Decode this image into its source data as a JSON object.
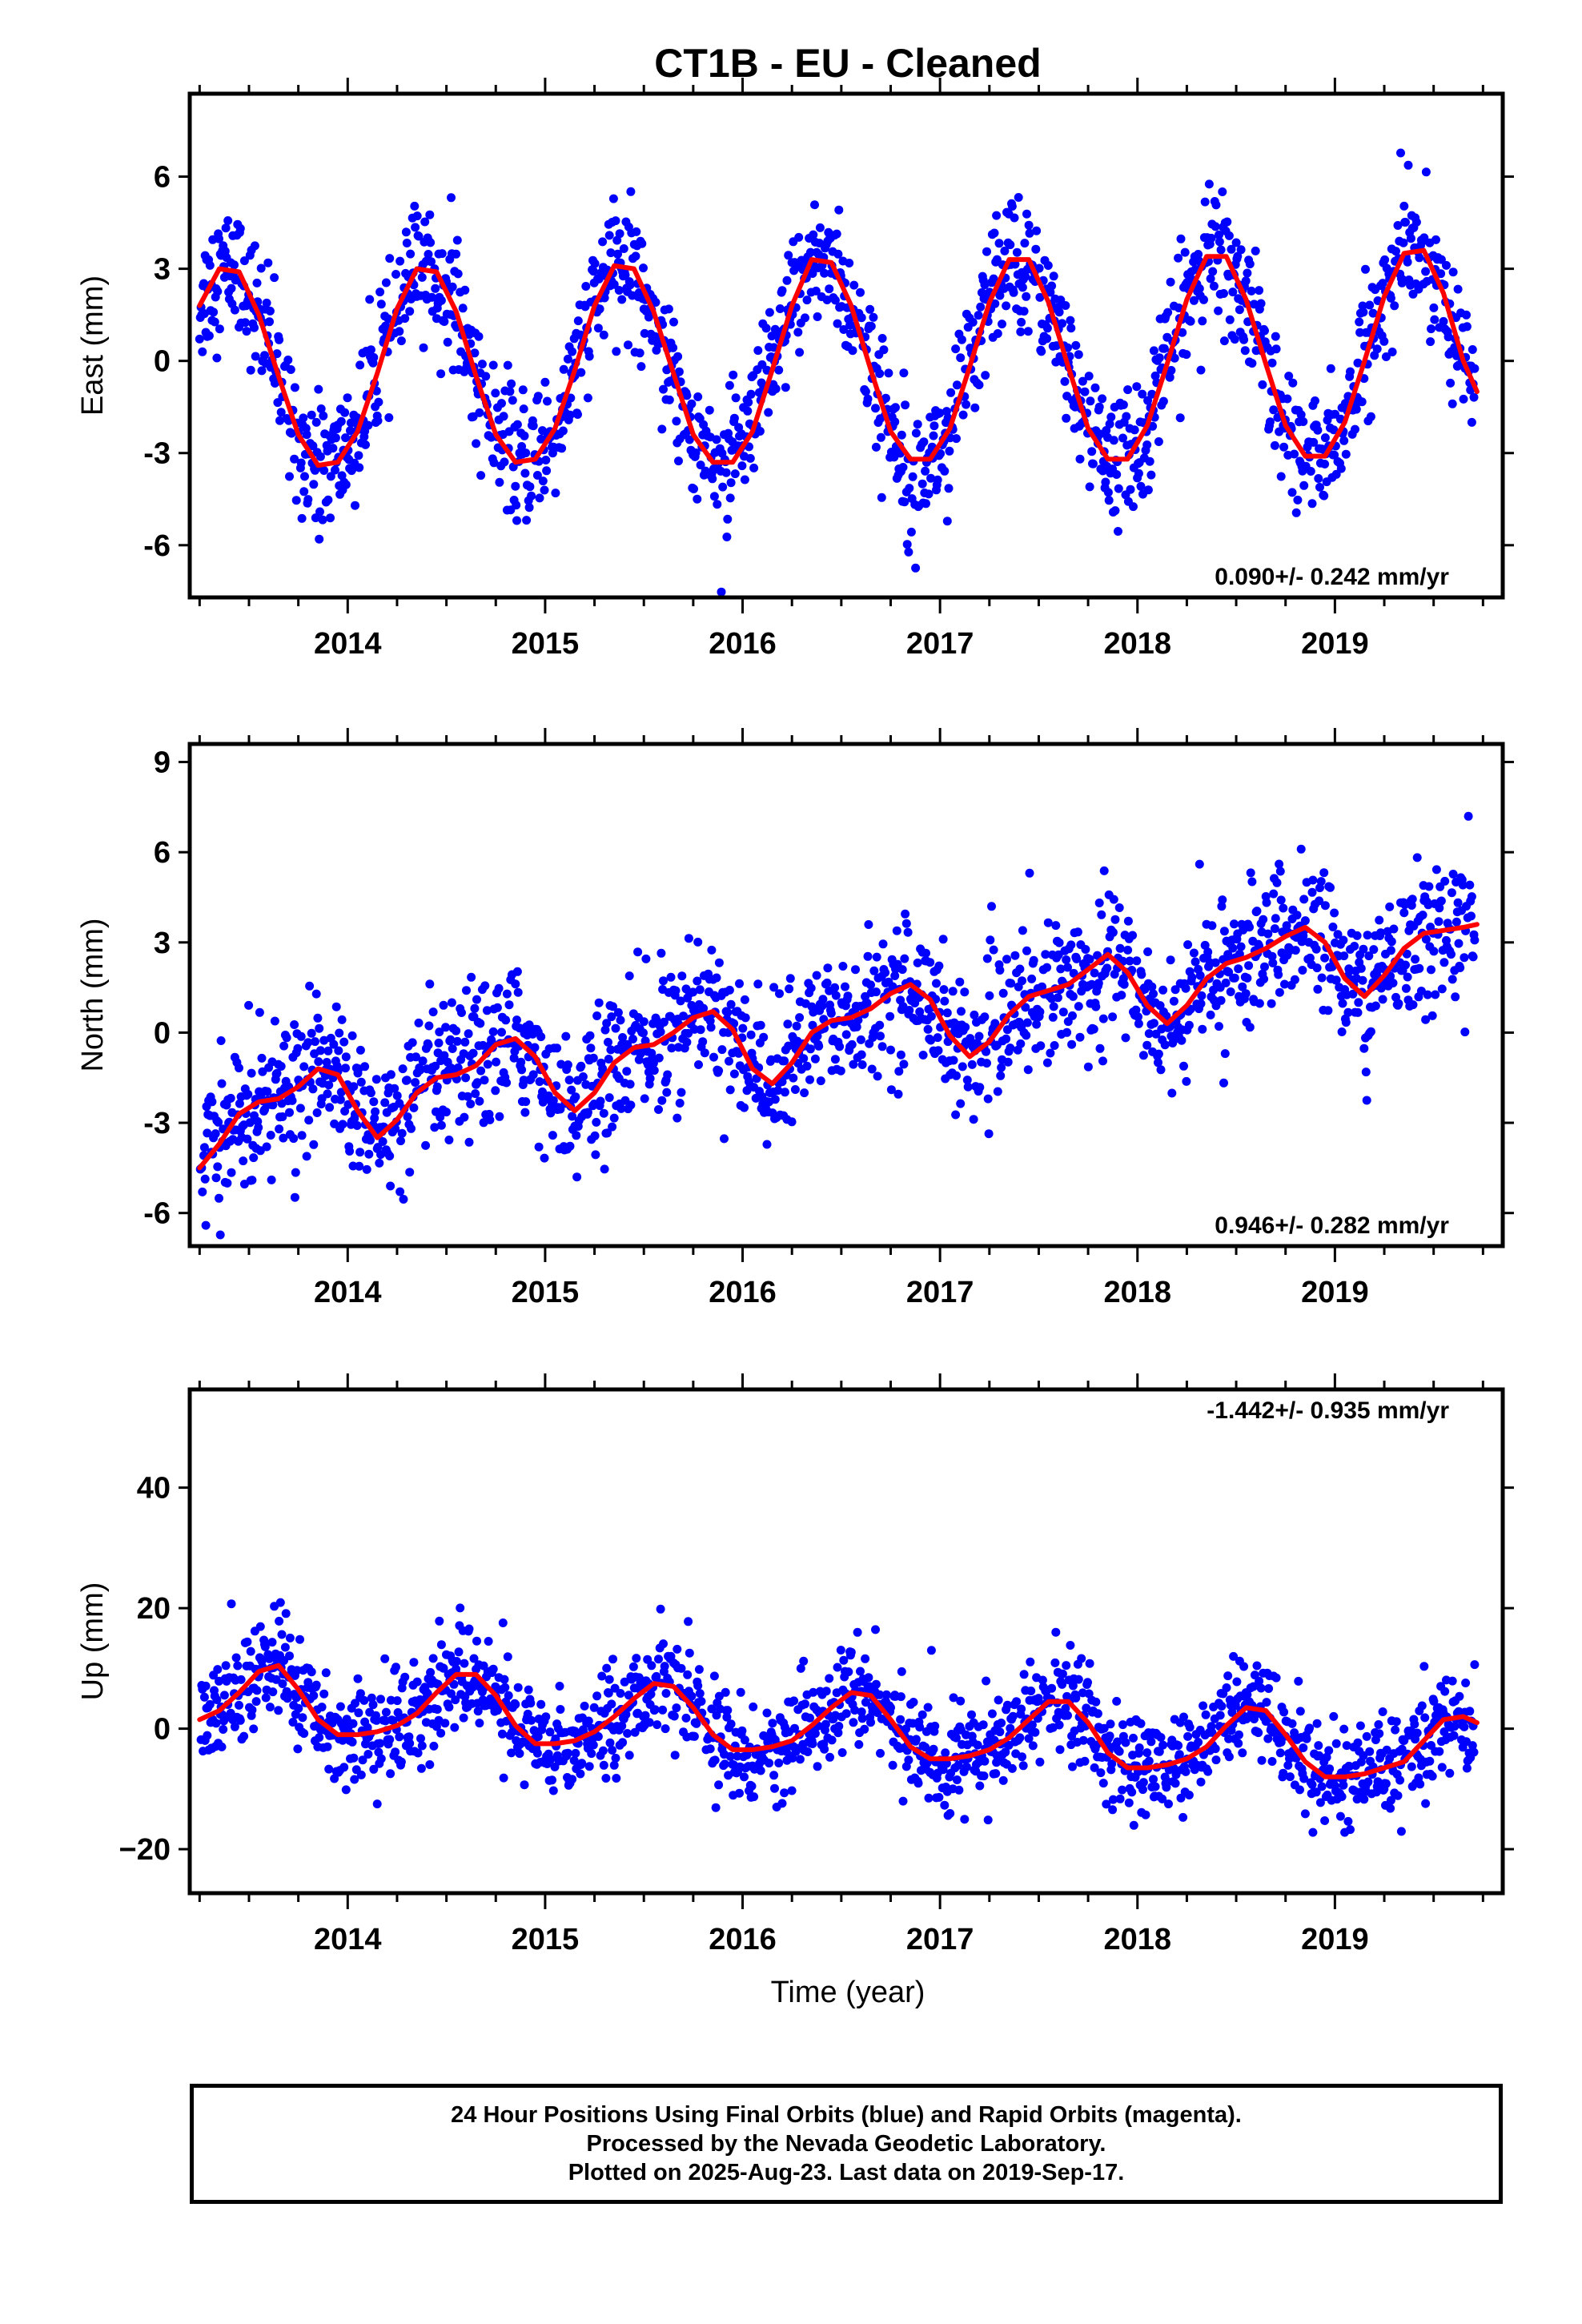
{
  "title": "CT1B  - EU - Cleaned",
  "colors": {
    "final": "#0000ff",
    "model": "#ff0000",
    "frame": "#000000"
  },
  "xlabel": "Time (year)",
  "footer": {
    "lines": [
      "24 Hour Positions Using Final Orbits (blue) and Rapid Orbits (magenta).",
      "Processed by the Nevada Geodetic Laboratory.",
      "Plotted on 2025-Aug-23. Last data on 2019-Sep-17."
    ]
  },
  "chart_data": [
    {
      "type": "scatter",
      "component": "east",
      "ylabel": "East (mm)",
      "xlim": [
        2013.2,
        2019.85
      ],
      "ylim": [
        -7.7,
        8.7
      ],
      "yticks": [
        "6",
        "3",
        "0",
        "-3",
        "-6"
      ],
      "xticks": [
        "2014",
        "2015",
        "2016",
        "2017",
        "2018",
        "2019"
      ],
      "rate_label": "0.090+/- 0.242 mm/yr",
      "rate_mm_per_yr": 0.09,
      "rate_sigma_mm_per_yr": 0.242,
      "series": [
        {
          "kind": "model",
          "x": [
            2013.25,
            2013.35,
            2013.45,
            2013.55,
            2013.65,
            2013.75,
            2013.85,
            2013.95,
            2014.05,
            2014.15,
            2014.25,
            2014.35,
            2014.45,
            2014.55,
            2014.65,
            2014.75,
            2014.85,
            2014.95,
            2015.05,
            2015.15,
            2015.25,
            2015.35,
            2015.45,
            2015.55,
            2015.65,
            2015.75,
            2015.85,
            2015.95,
            2016.05,
            2016.15,
            2016.25,
            2016.35,
            2016.45,
            2016.55,
            2016.65,
            2016.75,
            2016.85,
            2016.95,
            2017.05,
            2017.15,
            2017.25,
            2017.35,
            2017.45,
            2017.55,
            2017.65,
            2017.75,
            2017.85,
            2017.95,
            2018.05,
            2018.15,
            2018.25,
            2018.35,
            2018.45,
            2018.55,
            2018.65,
            2018.75,
            2018.85,
            2018.95,
            2019.05,
            2019.15,
            2019.25,
            2019.35,
            2019.45,
            2019.55,
            2019.65,
            2019.72
          ],
          "y": [
            1.8,
            3.0,
            2.9,
            1.5,
            -0.5,
            -2.4,
            -3.4,
            -3.3,
            -2.3,
            -0.4,
            1.7,
            3.0,
            2.9,
            1.6,
            -0.5,
            -2.4,
            -3.3,
            -3.2,
            -2.2,
            -0.3,
            1.8,
            3.1,
            3.0,
            1.6,
            -0.4,
            -2.4,
            -3.3,
            -3.3,
            -2.3,
            -0.3,
            1.8,
            3.3,
            3.2,
            1.8,
            -0.3,
            -2.3,
            -3.2,
            -3.2,
            -2.2,
            -0.2,
            1.9,
            3.3,
            3.3,
            1.9,
            -0.2,
            -2.2,
            -3.2,
            -3.2,
            -2.1,
            -0.1,
            2.0,
            3.4,
            3.4,
            2.0,
            -0.1,
            -2.1,
            -3.1,
            -3.1,
            -2.0,
            0.0,
            2.1,
            3.5,
            3.6,
            2.2,
            0.0,
            -1.0
          ]
        }
      ]
    },
    {
      "type": "scatter",
      "component": "north",
      "ylabel": "North (mm)",
      "xlim": [
        2013.2,
        2019.85
      ],
      "ylim": [
        -7.1,
        9.6
      ],
      "yticks": [
        "9",
        "6",
        "3",
        "0",
        "-3",
        "-6"
      ],
      "xticks": [
        "2014",
        "2015",
        "2016",
        "2017",
        "2018",
        "2019"
      ],
      "rate_label": "0.946+/- 0.282 mm/yr",
      "rate_mm_per_yr": 0.946,
      "rate_sigma_mm_per_yr": 0.282,
      "series": [
        {
          "kind": "model",
          "x": [
            2013.25,
            2013.35,
            2013.45,
            2013.55,
            2013.65,
            2013.75,
            2013.85,
            2013.95,
            2014.05,
            2014.15,
            2014.25,
            2014.35,
            2014.45,
            2014.55,
            2014.65,
            2014.75,
            2014.85,
            2014.95,
            2015.05,
            2015.15,
            2015.25,
            2015.35,
            2015.45,
            2015.55,
            2015.65,
            2015.75,
            2015.85,
            2015.95,
            2016.05,
            2016.15,
            2016.25,
            2016.35,
            2016.45,
            2016.55,
            2016.65,
            2016.75,
            2016.85,
            2016.95,
            2017.05,
            2017.15,
            2017.25,
            2017.35,
            2017.45,
            2017.55,
            2017.65,
            2017.75,
            2017.85,
            2017.95,
            2018.05,
            2018.15,
            2018.25,
            2018.35,
            2018.45,
            2018.55,
            2018.65,
            2018.75,
            2018.85,
            2018.95,
            2019.05,
            2019.15,
            2019.25,
            2019.35,
            2019.45,
            2019.55,
            2019.65,
            2019.72
          ],
          "y": [
            -4.5,
            -3.7,
            -2.7,
            -2.3,
            -2.2,
            -1.8,
            -1.2,
            -1.4,
            -2.6,
            -3.5,
            -2.9,
            -2.0,
            -1.5,
            -1.4,
            -1.1,
            -0.4,
            -0.2,
            -0.8,
            -2.0,
            -2.6,
            -2.0,
            -1.0,
            -0.5,
            -0.4,
            0.0,
            0.5,
            0.7,
            0.1,
            -1.2,
            -1.7,
            -1.0,
            0.0,
            0.4,
            0.5,
            0.8,
            1.3,
            1.6,
            1.1,
            -0.1,
            -0.8,
            -0.3,
            0.6,
            1.2,
            1.4,
            1.6,
            2.1,
            2.6,
            2.0,
            0.9,
            0.3,
            0.9,
            1.8,
            2.3,
            2.5,
            2.8,
            3.2,
            3.5,
            3.0,
            1.8,
            1.2,
            1.9,
            2.8,
            3.3,
            3.4,
            3.5,
            3.6
          ]
        }
      ]
    },
    {
      "type": "scatter",
      "component": "up",
      "ylabel": "Up (mm)",
      "xlim": [
        2013.2,
        2019.85
      ],
      "ylim": [
        -27.3,
        56.3
      ],
      "yticks": [
        "40",
        "20",
        "0",
        "−20"
      ],
      "xticks": [
        "2014",
        "2015",
        "2016",
        "2017",
        "2018",
        "2019"
      ],
      "rate_label": "-1.442+/- 0.935 mm/yr",
      "rate_mm_per_yr": -1.442,
      "rate_sigma_mm_per_yr": 0.935,
      "series": [
        {
          "kind": "model",
          "x": [
            2013.25,
            2013.35,
            2013.45,
            2013.55,
            2013.65,
            2013.75,
            2013.85,
            2013.95,
            2014.05,
            2014.15,
            2014.25,
            2014.35,
            2014.45,
            2014.55,
            2014.65,
            2014.75,
            2014.85,
            2014.95,
            2015.05,
            2015.15,
            2015.25,
            2015.35,
            2015.45,
            2015.55,
            2015.65,
            2015.75,
            2015.85,
            2015.95,
            2016.05,
            2016.15,
            2016.25,
            2016.35,
            2016.45,
            2016.55,
            2016.65,
            2016.75,
            2016.85,
            2016.95,
            2017.05,
            2017.15,
            2017.25,
            2017.35,
            2017.45,
            2017.55,
            2017.65,
            2017.75,
            2017.85,
            2017.95,
            2018.05,
            2018.15,
            2018.25,
            2018.35,
            2018.45,
            2018.55,
            2018.65,
            2018.75,
            2018.85,
            2018.95,
            2019.05,
            2019.15,
            2019.25,
            2019.35,
            2019.45,
            2019.55,
            2019.65,
            2019.72
          ],
          "y": [
            1.5,
            3.0,
            6.0,
            9.5,
            10.5,
            6.5,
            1.5,
            -1.0,
            -1.0,
            -0.5,
            0.5,
            2.5,
            6.0,
            9.0,
            9.0,
            5.5,
            0.5,
            -2.5,
            -2.5,
            -2.0,
            -0.5,
            2.0,
            5.0,
            7.5,
            7.0,
            3.5,
            -1.0,
            -3.5,
            -3.5,
            -3.0,
            -2.0,
            0.5,
            3.5,
            6.0,
            5.5,
            1.5,
            -3.0,
            -5.0,
            -5.0,
            -4.5,
            -3.5,
            -1.5,
            1.5,
            4.5,
            4.5,
            1.0,
            -4.0,
            -6.5,
            -6.5,
            -6.0,
            -5.0,
            -3.0,
            0.5,
            3.5,
            3.0,
            -1.0,
            -5.5,
            -8.0,
            -8.0,
            -7.5,
            -6.5,
            -5.5,
            -2.0,
            1.5,
            2.0,
            1.0
          ]
        }
      ]
    }
  ]
}
